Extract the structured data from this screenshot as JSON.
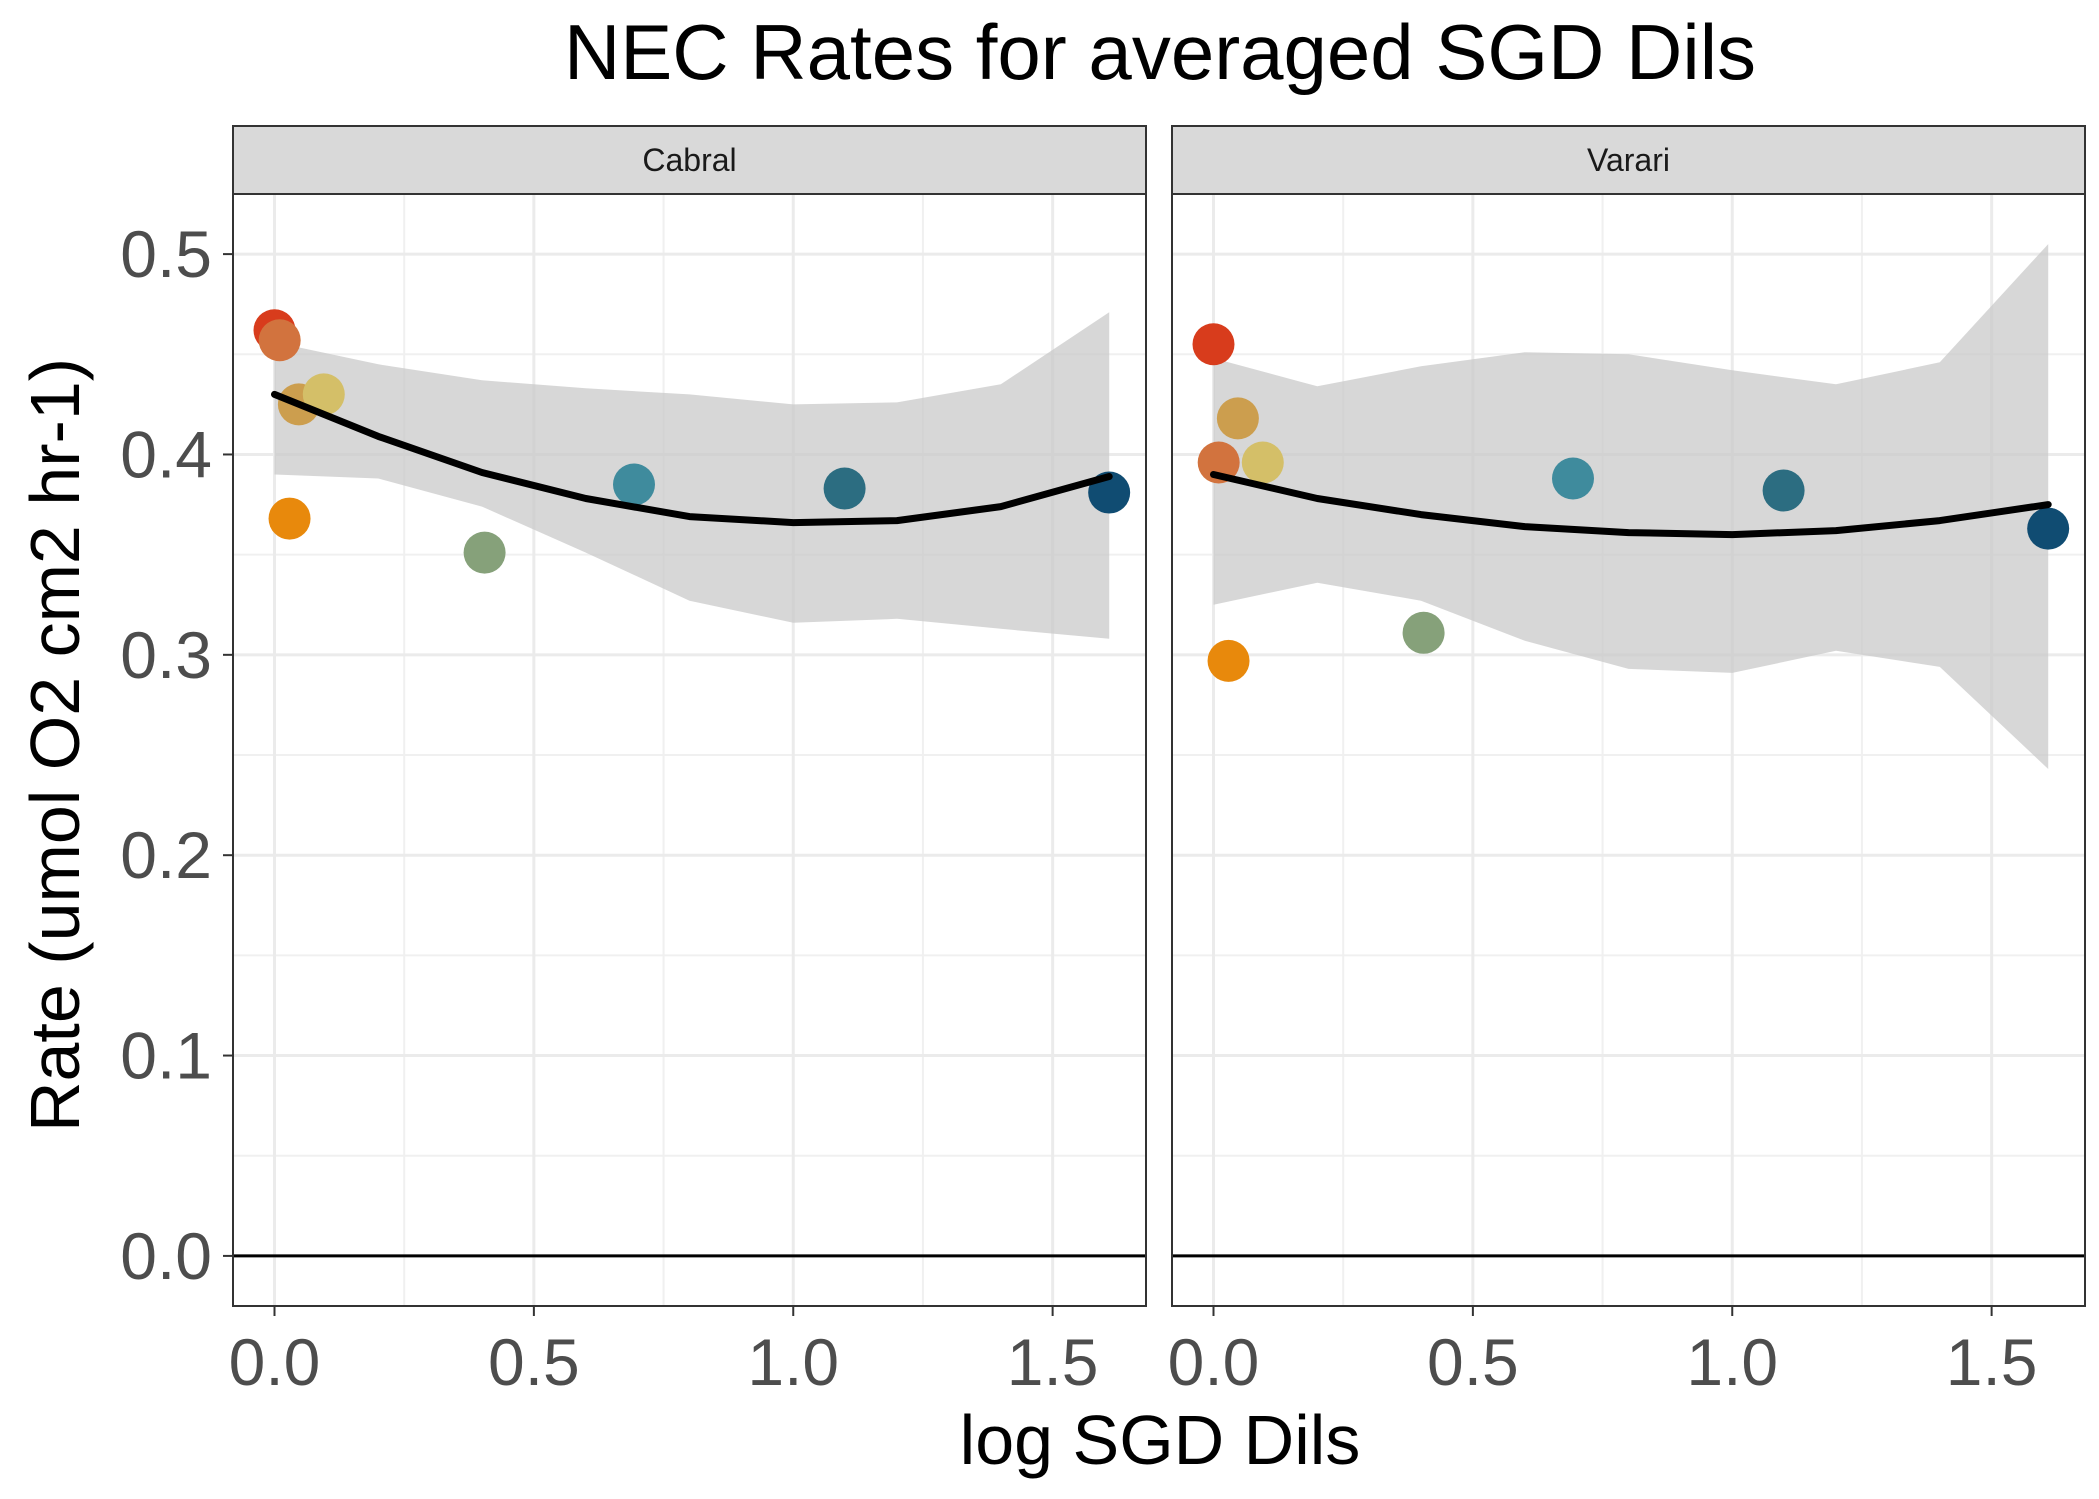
{
  "chart_data": {
    "type": "scatter",
    "title": "NEC Rates for averaged SGD Dils",
    "xlabel": "log SGD Dils",
    "ylabel": "Rate (umol O2 cm2 hr-1)",
    "xlim": [
      -0.08,
      1.68
    ],
    "ylim": [
      -0.025,
      0.53
    ],
    "x_ticks": [
      0.0,
      0.5,
      1.0,
      1.5
    ],
    "x_tick_labels": [
      "0.0",
      "0.5",
      "1.0",
      "1.5"
    ],
    "y_ticks": [
      0.0,
      0.1,
      0.2,
      0.3,
      0.4,
      0.5
    ],
    "y_tick_labels": [
      "0.0",
      "0.1",
      "0.2",
      "0.3",
      "0.4",
      "0.5"
    ],
    "hline_y": 0,
    "grid": true,
    "facets": [
      {
        "label": "Cabral",
        "points": [
          {
            "x": 0.0,
            "y": 0.462,
            "color": "#d83c1c"
          },
          {
            "x": 0.01,
            "y": 0.457,
            "color": "#d2733e"
          },
          {
            "x": 0.047,
            "y": 0.425,
            "color": "#cc9e4e"
          },
          {
            "x": 0.095,
            "y": 0.43,
            "color": "#d4bf68"
          },
          {
            "x": 0.029,
            "y": 0.368,
            "color": "#e8890c"
          },
          {
            "x": 0.405,
            "y": 0.351,
            "color": "#86a17a"
          },
          {
            "x": 0.693,
            "y": 0.385,
            "color": "#3f8b9d"
          },
          {
            "x": 1.099,
            "y": 0.383,
            "color": "#2c6d81"
          },
          {
            "x": 1.609,
            "y": 0.381,
            "color": "#104c72"
          }
        ],
        "smooth": {
          "x": [
            0.0,
            0.2,
            0.4,
            0.6,
            0.8,
            1.0,
            1.2,
            1.4,
            1.609
          ],
          "fit": [
            0.43,
            0.409,
            0.391,
            0.378,
            0.369,
            0.366,
            0.367,
            0.374,
            0.389
          ],
          "lower": [
            0.39,
            0.388,
            0.374,
            0.351,
            0.327,
            0.316,
            0.318,
            0.313,
            0.308
          ],
          "upper": [
            0.456,
            0.445,
            0.437,
            0.433,
            0.43,
            0.425,
            0.426,
            0.435,
            0.471
          ]
        }
      },
      {
        "label": "Varari",
        "points": [
          {
            "x": 0.0,
            "y": 0.455,
            "color": "#d83c1c"
          },
          {
            "x": 0.01,
            "y": 0.396,
            "color": "#d2733e"
          },
          {
            "x": 0.047,
            "y": 0.418,
            "color": "#cc9e4e"
          },
          {
            "x": 0.095,
            "y": 0.396,
            "color": "#d4bf68"
          },
          {
            "x": 0.029,
            "y": 0.297,
            "color": "#e8890c"
          },
          {
            "x": 0.405,
            "y": 0.311,
            "color": "#86a17a"
          },
          {
            "x": 0.693,
            "y": 0.388,
            "color": "#3f8b9d"
          },
          {
            "x": 1.099,
            "y": 0.382,
            "color": "#2c6d81"
          },
          {
            "x": 1.609,
            "y": 0.363,
            "color": "#104c72"
          }
        ],
        "smooth": {
          "x": [
            0.0,
            0.2,
            0.4,
            0.6,
            0.8,
            1.0,
            1.2,
            1.4,
            1.609
          ],
          "fit": [
            0.39,
            0.378,
            0.37,
            0.364,
            0.361,
            0.36,
            0.362,
            0.367,
            0.375
          ],
          "lower": [
            0.325,
            0.336,
            0.327,
            0.307,
            0.293,
            0.291,
            0.302,
            0.294,
            0.243
          ],
          "upper": [
            0.448,
            0.434,
            0.444,
            0.451,
            0.45,
            0.442,
            0.435,
            0.446,
            0.505
          ]
        }
      }
    ]
  }
}
